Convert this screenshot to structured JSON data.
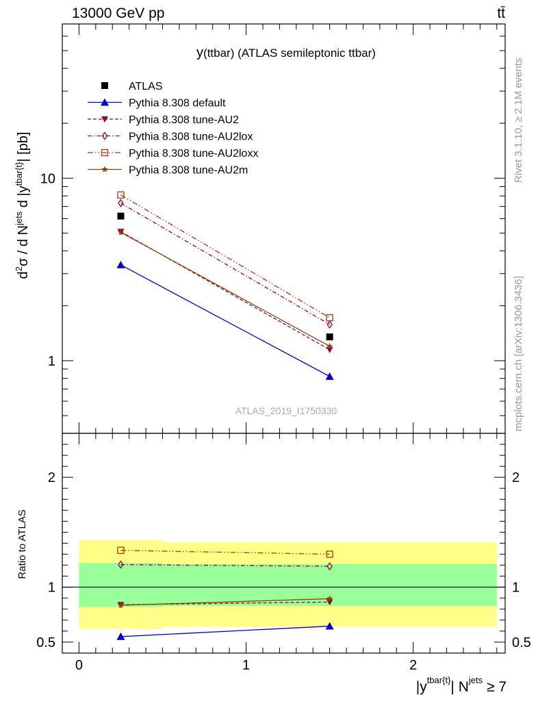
{
  "header": {
    "left": "13000 GeV pp",
    "right": "tt̄"
  },
  "side_text": {
    "rivet": "Rivet 3.1.10, ≥ 2.1M events",
    "mcplots": "mcplots.cern.ch [arXiv:1306.3436]"
  },
  "chart_data": [
    {
      "type": "line",
      "title": "y(ttbar) (ATLAS semileptonic ttbar)",
      "title_prefix": "y",
      "title_rest": "(ttbar) (ATLAS semileptonic ttbar)",
      "ylabel": "d²σ / d N^jets d |y^tbar{t}| [pb]",
      "ylabel_parts": {
        "a": "d",
        "a_sup": "2",
        "b": "σ / d N",
        "b_sup": "jets",
        "c": " d |y",
        "c_sup": "tbar{t}",
        "d": "| [pb]"
      },
      "yscale": "log",
      "ylim": [
        0.4,
        70
      ],
      "y_tick_labels": [
        "1",
        "10"
      ],
      "xlim": [
        -0.1,
        2.55
      ],
      "watermark": "ATLAS_2019_I1750330",
      "legend_position": "top-left",
      "x": [
        0.25,
        1.5
      ],
      "series": [
        {
          "name": "ATLAS",
          "values": [
            6.2,
            1.35
          ],
          "color": "#000000",
          "marker": "square-filled",
          "line": "none"
        },
        {
          "name": "Pythia 8.308 default",
          "values": [
            3.35,
            0.82
          ],
          "color": "#0000d0",
          "marker": "triangle-filled",
          "line": "solid"
        },
        {
          "name": "Pythia 8.308 tune-AU2",
          "values": [
            5.1,
            1.15
          ],
          "color": "#990033",
          "marker": "triangle-down-filled",
          "line": "dashed"
        },
        {
          "name": "Pythia 8.308 tune-AU2lox",
          "values": [
            7.3,
            1.58
          ],
          "color": "#990033",
          "marker": "diamond-open",
          "line": "dashdot"
        },
        {
          "name": "Pythia 8.308 tune-AU2loxx",
          "values": [
            8.1,
            1.72
          ],
          "color": "#bb3300",
          "marker": "square-open",
          "line": "dashdotdot"
        },
        {
          "name": "Pythia 8.308 tune-AU2m",
          "values": [
            5.05,
            1.2
          ],
          "color": "#884400",
          "marker": "star",
          "line": "solid"
        }
      ]
    },
    {
      "type": "line",
      "ylabel": "Ratio to ATLAS",
      "ylim": [
        0.4,
        2.4
      ],
      "y_tick_labels": [
        "0.5",
        "1",
        "2"
      ],
      "xlabel": "|y^tbar{t}| N^jets ≥ 7",
      "xlabel_parts": {
        "a": "|y",
        "a_sup": "tbar{t}",
        "b": "| N",
        "b_sup": "jets",
        "c": " ≥ 7"
      },
      "x_tick_labels": [
        "0",
        "1",
        "2"
      ],
      "xlim": [
        -0.1,
        2.55
      ],
      "bands": {
        "bins": [
          [
            0.0,
            0.5
          ],
          [
            0.5,
            2.5
          ]
        ],
        "yellow": [
          [
            0.62,
            1.43
          ],
          [
            0.64,
            1.41
          ]
        ],
        "green": [
          [
            0.82,
            1.22
          ],
          [
            0.83,
            1.21
          ]
        ]
      },
      "x": [
        0.25,
        1.5
      ],
      "series": [
        {
          "name": "Pythia 8.308 default",
          "values": [
            0.55,
            0.645
          ]
        },
        {
          "name": "Pythia 8.308 tune-AU2",
          "values": [
            0.84,
            0.865
          ]
        },
        {
          "name": "Pythia 8.308 tune-AU2lox",
          "values": [
            1.205,
            1.19
          ]
        },
        {
          "name": "Pythia 8.308 tune-AU2loxx",
          "values": [
            1.335,
            1.3
          ]
        },
        {
          "name": "Pythia 8.308 tune-AU2m",
          "values": [
            0.835,
            0.895
          ]
        }
      ]
    }
  ]
}
